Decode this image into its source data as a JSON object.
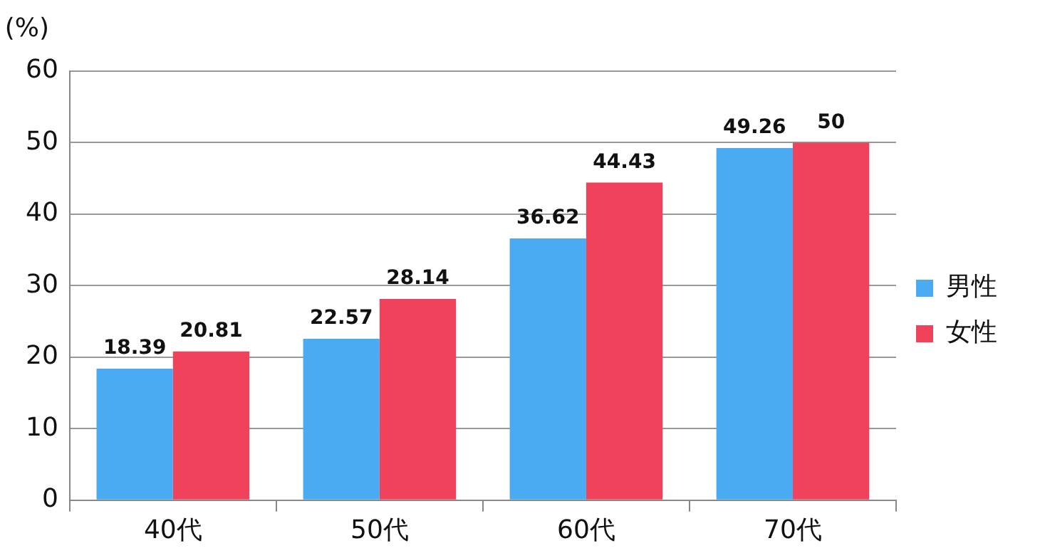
{
  "chart_data": {
    "type": "bar",
    "ylabel": "(%)",
    "categories": [
      "40代",
      "50代",
      "60代",
      "70代"
    ],
    "series": [
      {
        "name": "男性",
        "color": "#4aaaf2",
        "values": [
          18.39,
          22.57,
          36.62,
          49.26
        ]
      },
      {
        "name": "女性",
        "color": "#f0425a",
        "values": [
          20.81,
          28.14,
          44.43,
          50
        ]
      }
    ],
    "ylim": [
      0,
      60
    ],
    "yticks": [
      0,
      10,
      20,
      30,
      40,
      50,
      60
    ],
    "grid": "y",
    "legend": "right",
    "data_labels": true
  }
}
